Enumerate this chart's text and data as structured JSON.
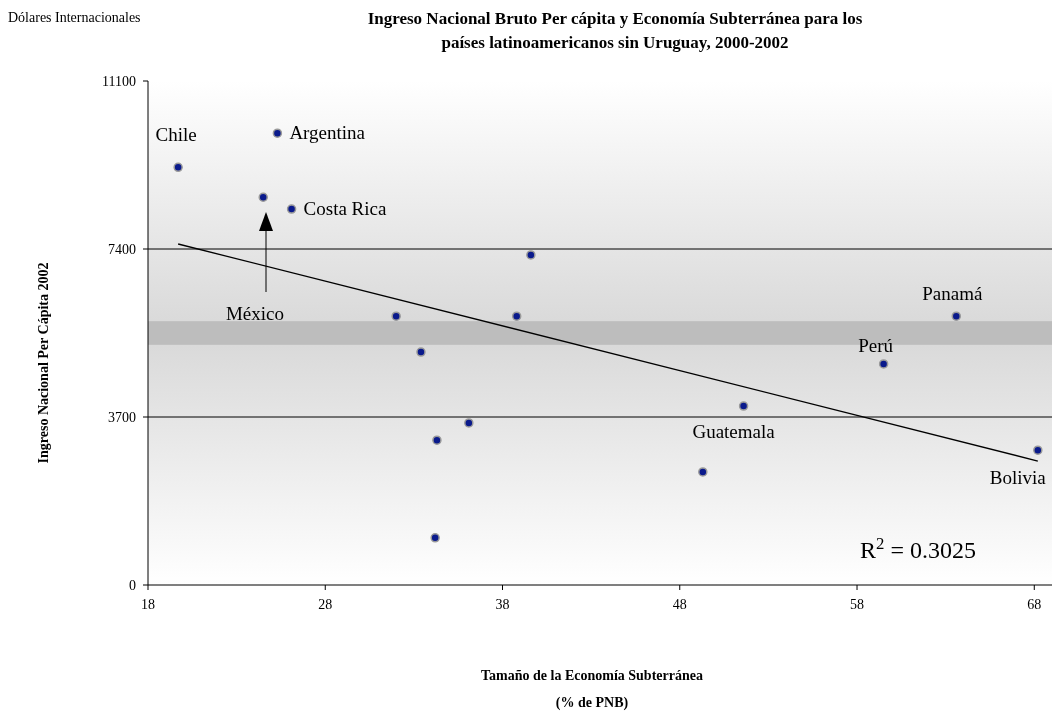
{
  "chart_data": {
    "type": "scatter",
    "title": "Ingreso Nacional Bruto Per cápita y Economía Subterránea para los\npaíses latinoamericanos sin Uruguay, 2000-2002",
    "xlabel": "Tamaño de la Economía Subterránea\n(% de PNB)",
    "ylabel": "Ingreso Nacional Per Cápita 2002",
    "xlim": [
      18,
      69
    ],
    "xticks": [
      18,
      28,
      38,
      48,
      58,
      68
    ],
    "ylim": [
      0,
      11100
    ],
    "yticks": [
      0,
      3700,
      7400,
      11100
    ],
    "grid": "y",
    "series": [
      {
        "marker": "circle",
        "color": "#0a1a8c",
        "x": [
          19.7,
          25.3,
          24.5,
          26.1,
          39.6,
          32.0,
          38.8,
          33.4,
          36.1,
          34.3,
          34.2,
          49.3,
          51.6,
          59.5,
          63.6,
          68.2
        ],
        "values": [
          9200,
          9950,
          8540,
          8280,
          7270,
          5920,
          5920,
          5130,
          3570,
          3190,
          1040,
          2490,
          3940,
          4870,
          5920,
          2970
        ]
      },
      {
        "type": "line",
        "color": "#000000",
        "x": [
          19.7,
          68.2
        ],
        "values": [
          7510,
          2730
        ]
      }
    ],
    "bands": [
      {
        "axis": "y",
        "from": 5290,
        "to": 5810,
        "color": "#bdbdbd"
      }
    ],
    "annotations": [
      "Dólares Internacionales",
      "R$^{2}$ = 0.3025",
      "México",
      {
        "text": "Chile",
        "x": 19.7,
        "y": 9200
      },
      {
        "text": "Argentina",
        "x": 25.3,
        "y": 9950
      },
      {
        "text": "Costa Rica",
        "x": 26.1,
        "y": 8280
      },
      {
        "text": "Panamá",
        "x": 63.6,
        "y": 5920
      },
      {
        "text": "Perú",
        "x": 59.5,
        "y": 4870
      },
      {
        "text": "Guatemala",
        "x": 51.6,
        "y": 3940
      },
      {
        "text": "Bolivia",
        "x": 68.2,
        "y": 2970
      }
    ]
  }
}
